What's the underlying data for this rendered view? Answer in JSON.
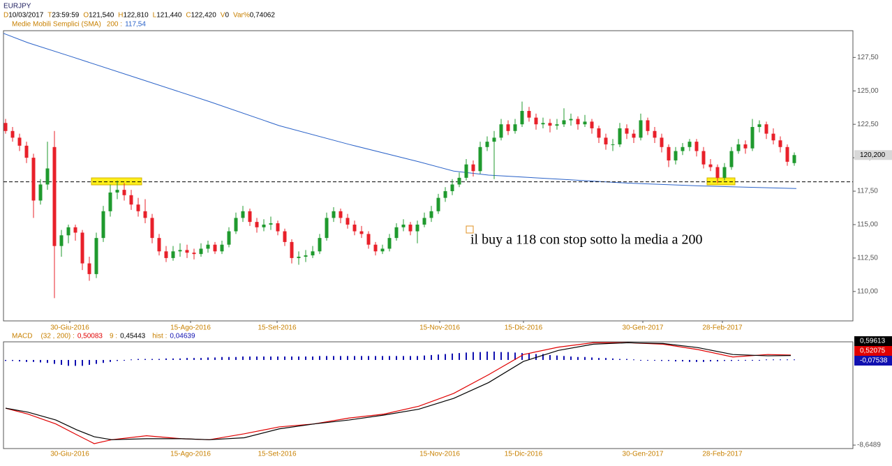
{
  "chart_data": [
    {
      "type": "candlestick",
      "title": "EURJPY",
      "header": [
        {
          "key": "D",
          "value": "10/03/2017"
        },
        {
          "key": "T",
          "value": "23:59:59"
        },
        {
          "key": "O",
          "value": "121,540"
        },
        {
          "key": "H",
          "value": "122,810"
        },
        {
          "key": "L",
          "value": "121,440"
        },
        {
          "key": "C",
          "value": "122,420"
        },
        {
          "key": "V",
          "value": "0"
        },
        {
          "key": "Var%",
          "value": "0,74062"
        }
      ],
      "indicator": {
        "name": "Medie Mobili Semplici (SMA)",
        "param": "200 :",
        "value": "117,54"
      },
      "xlim": [
        -0.3,
        121.4
      ],
      "ylim": [
        107.8,
        129.5
      ],
      "yticks": [
        {
          "value": 110,
          "label": "110,00"
        },
        {
          "value": 112.5,
          "label": "112,50"
        },
        {
          "value": 115,
          "label": "115,00"
        },
        {
          "value": 117.5,
          "label": "117,50"
        },
        {
          "value": 120,
          "label": "120,00"
        },
        {
          "value": 122.5,
          "label": "122,50"
        },
        {
          "value": 125,
          "label": "125,00"
        },
        {
          "value": 127.5,
          "label": "127,50"
        }
      ],
      "xticks": [
        {
          "value": 9.2,
          "label": "30-Giu-2016"
        },
        {
          "value": 26.5,
          "label": "15-Ago-2016"
        },
        {
          "value": 38.9,
          "label": "15-Set-2016"
        },
        {
          "value": 62.2,
          "label": "15-Nov-2016"
        },
        {
          "value": 74.2,
          "label": "15-Dic-2016"
        },
        {
          "value": 91.3,
          "label": "30-Gen-2017"
        },
        {
          "value": 102.7,
          "label": "28-Feb-2017"
        }
      ],
      "up_color": "#1f9a2e",
      "down_color": "#e8202a",
      "ohlc": [
        [
          122.6,
          122.9,
          121.8,
          122.0
        ],
        [
          122.0,
          122.3,
          121.2,
          121.5
        ],
        [
          121.5,
          121.8,
          120.5,
          120.9
        ],
        [
          120.9,
          121.2,
          119.6,
          120.0
        ],
        [
          120.0,
          120.3,
          115.5,
          116.8
        ],
        [
          116.8,
          118.4,
          116.5,
          118.0
        ],
        [
          118.0,
          121.2,
          117.6,
          119.2
        ],
        [
          120.8,
          122.0,
          109.5,
          113.4
        ],
        [
          113.4,
          114.6,
          112.6,
          114.2
        ],
        [
          114.2,
          115.0,
          113.6,
          114.8
        ],
        [
          114.8,
          115.0,
          113.8,
          114.4
        ],
        [
          114.4,
          114.6,
          111.6,
          112.1
        ],
        [
          112.1,
          112.6,
          110.8,
          111.3
        ],
        [
          111.3,
          114.4,
          111.0,
          114.0
        ],
        [
          114.0,
          116.4,
          113.7,
          116.0
        ],
        [
          116.0,
          118.0,
          115.6,
          117.4
        ],
        [
          117.4,
          118.3,
          116.9,
          117.6
        ],
        [
          117.6,
          118.1,
          116.8,
          117.2
        ],
        [
          117.2,
          117.6,
          116.1,
          116.5
        ],
        [
          116.5,
          117.0,
          115.6,
          116.0
        ],
        [
          116.0,
          116.9,
          115.1,
          115.5
        ],
        [
          115.5,
          115.8,
          113.6,
          114.0
        ],
        [
          114.0,
          114.3,
          112.7,
          113.0
        ],
        [
          113.0,
          113.4,
          112.2,
          112.5
        ],
        [
          112.5,
          113.4,
          112.3,
          113.0
        ],
        [
          113.0,
          113.6,
          112.6,
          113.1
        ],
        [
          113.1,
          113.5,
          112.5,
          112.9
        ],
        [
          112.9,
          113.2,
          112.4,
          112.8
        ],
        [
          112.8,
          113.6,
          112.6,
          113.2
        ],
        [
          113.2,
          113.8,
          112.9,
          113.5
        ],
        [
          113.5,
          113.7,
          112.8,
          113.0
        ],
        [
          113.0,
          113.8,
          112.8,
          113.5
        ],
        [
          113.5,
          114.8,
          113.3,
          114.5
        ],
        [
          114.5,
          115.9,
          114.3,
          115.5
        ],
        [
          115.5,
          116.4,
          115.2,
          116.0
        ],
        [
          116.0,
          116.2,
          114.9,
          115.2
        ],
        [
          115.2,
          115.5,
          114.4,
          114.8
        ],
        [
          114.8,
          115.4,
          114.5,
          115.0
        ],
        [
          115.0,
          115.6,
          114.6,
          115.1
        ],
        [
          115.1,
          115.3,
          114.2,
          114.5
        ],
        [
          114.5,
          114.7,
          113.4,
          113.7
        ],
        [
          113.7,
          113.9,
          112.1,
          112.5
        ],
        [
          112.5,
          113.0,
          112.0,
          112.6
        ],
        [
          112.6,
          113.1,
          112.2,
          112.7
        ],
        [
          112.7,
          113.4,
          112.5,
          113.0
        ],
        [
          113.0,
          114.3,
          112.8,
          114.0
        ],
        [
          114.0,
          115.9,
          113.8,
          115.5
        ],
        [
          115.5,
          116.3,
          115.2,
          116.0
        ],
        [
          116.0,
          116.2,
          115.1,
          115.5
        ],
        [
          115.5,
          115.8,
          114.7,
          115.0
        ],
        [
          115.0,
          115.3,
          114.2,
          114.5
        ],
        [
          114.5,
          114.9,
          114.0,
          114.3
        ],
        [
          114.3,
          114.5,
          113.2,
          113.5
        ],
        [
          113.5,
          113.7,
          112.7,
          113.0
        ],
        [
          113.0,
          113.5,
          112.8,
          113.2
        ],
        [
          113.2,
          114.3,
          113.0,
          114.0
        ],
        [
          114.0,
          115.1,
          113.8,
          114.8
        ],
        [
          114.8,
          115.4,
          114.5,
          115.0
        ],
        [
          115.0,
          115.2,
          114.2,
          114.5
        ],
        [
          114.5,
          115.3,
          113.6,
          115.0
        ],
        [
          115.0,
          115.9,
          114.8,
          115.5
        ],
        [
          115.5,
          116.4,
          115.2,
          116.0
        ],
        [
          116.0,
          117.3,
          115.8,
          117.0
        ],
        [
          117.0,
          117.8,
          116.7,
          117.5
        ],
        [
          117.5,
          118.4,
          117.2,
          118.0
        ],
        [
          118.0,
          118.9,
          117.8,
          118.5
        ],
        [
          118.5,
          119.9,
          118.3,
          119.5
        ],
        [
          119.5,
          119.8,
          118.6,
          119.0
        ],
        [
          119.0,
          121.2,
          118.8,
          120.8
        ],
        [
          120.8,
          121.6,
          120.5,
          121.2
        ],
        [
          121.2,
          122.0,
          118.4,
          121.5
        ],
        [
          121.5,
          122.9,
          121.3,
          122.5
        ],
        [
          122.5,
          122.8,
          121.7,
          122.0
        ],
        [
          122.0,
          122.9,
          121.8,
          122.5
        ],
        [
          122.5,
          124.2,
          122.3,
          123.5
        ],
        [
          123.5,
          123.8,
          122.7,
          123.0
        ],
        [
          123.0,
          123.3,
          122.1,
          122.5
        ],
        [
          122.5,
          123.0,
          122.2,
          122.6
        ],
        [
          122.6,
          122.9,
          121.9,
          122.4
        ],
        [
          122.4,
          122.9,
          122.1,
          122.5
        ],
        [
          122.5,
          123.7,
          122.3,
          122.8
        ],
        [
          122.8,
          123.3,
          122.4,
          122.9
        ],
        [
          122.9,
          123.1,
          122.1,
          122.5
        ],
        [
          122.5,
          123.2,
          122.3,
          122.7
        ],
        [
          122.7,
          122.9,
          121.8,
          122.2
        ],
        [
          122.2,
          122.4,
          121.1,
          121.5
        ],
        [
          121.5,
          121.8,
          120.6,
          121.0
        ],
        [
          121.0,
          121.4,
          120.5,
          121.0
        ],
        [
          121.0,
          122.6,
          120.8,
          122.2
        ],
        [
          122.2,
          122.5,
          121.4,
          121.8
        ],
        [
          121.8,
          122.1,
          121.1,
          121.5
        ],
        [
          121.5,
          123.3,
          121.3,
          122.8
        ],
        [
          122.8,
          123.0,
          121.7,
          122.0
        ],
        [
          122.0,
          122.3,
          121.1,
          121.5
        ],
        [
          121.5,
          121.8,
          120.4,
          120.8
        ],
        [
          120.8,
          121.0,
          119.3,
          119.8
        ],
        [
          119.8,
          120.8,
          119.5,
          120.5
        ],
        [
          120.5,
          121.1,
          120.2,
          120.8
        ],
        [
          120.8,
          121.4,
          120.5,
          121.2
        ],
        [
          121.2,
          121.4,
          120.1,
          120.5
        ],
        [
          120.5,
          120.8,
          119.2,
          119.5
        ],
        [
          119.5,
          119.9,
          119.0,
          119.3
        ],
        [
          119.3,
          119.5,
          118.1,
          118.5
        ],
        [
          118.5,
          119.6,
          118.3,
          119.3
        ],
        [
          119.3,
          120.8,
          119.1,
          120.5
        ],
        [
          120.5,
          121.4,
          120.3,
          121.0
        ],
        [
          121.0,
          121.3,
          120.3,
          120.7
        ],
        [
          120.7,
          122.9,
          120.5,
          122.3
        ],
        [
          122.3,
          122.8,
          121.9,
          122.5
        ],
        [
          122.5,
          122.7,
          121.4,
          121.8
        ],
        [
          121.8,
          122.2,
          121.0,
          121.3
        ],
        [
          121.3,
          121.6,
          120.4,
          120.8
        ],
        [
          120.8,
          121.0,
          119.4,
          119.7
        ],
        [
          119.6,
          120.4,
          119.4,
          120.2
        ]
      ],
      "sma": {
        "color": "#2a62c8",
        "x": [
          -0.3,
          3.2,
          9.2,
          19.2,
          29.2,
          39.2,
          49.2,
          59.2,
          64.2,
          69.2,
          79.2,
          89.2,
          99.2,
          113.3
        ],
        "values": [
          129.3,
          128.6,
          127.6,
          125.9,
          124.2,
          122.4,
          121.0,
          119.7,
          119.0,
          118.7,
          118.4,
          118.1,
          117.9,
          117.7
        ]
      },
      "hline": 118.2,
      "last_price": {
        "value": 120.2,
        "label": "120,200"
      },
      "annotation": "il buy a 118 con stop sotto la media a 200"
    },
    {
      "type": "macd",
      "title": "MACD",
      "legend": [
        {
          "label": "(32 , 200) :",
          "value": "0,50083",
          "color": "#e00000"
        },
        {
          "label": "9 :",
          "value": "0,45443",
          "color": "#000000"
        },
        {
          "label": "hist :",
          "value": "0,04639",
          "color": "#1010b0"
        }
      ],
      "xlim": [
        -0.3,
        121.4
      ],
      "ylim": [
        -9.0,
        1.84
      ],
      "x": [
        0,
        3.2,
        7.2,
        10.2,
        12.7,
        15.2,
        20.2,
        25.2,
        29.2,
        34.2,
        39.2,
        44.2,
        49.2,
        54.2,
        59.2,
        64.2,
        69.2,
        74.2,
        79.2,
        84.2,
        89.2,
        94.2,
        99.2,
        104.2,
        109.2,
        112.5
      ],
      "series": [
        {
          "color": "#e00000",
          "values": [
            -4.9,
            -5.5,
            -6.5,
            -7.6,
            -8.5,
            -8.1,
            -7.7,
            -8.0,
            -8.1,
            -7.5,
            -6.8,
            -6.5,
            -5.9,
            -5.5,
            -4.7,
            -3.4,
            -1.5,
            0.55,
            1.3,
            1.75,
            1.75,
            1.6,
            1.05,
            0.3,
            0.55,
            0.5
          ]
        },
        {
          "color": "#000000",
          "values": [
            -4.9,
            -5.3,
            -6.1,
            -7.1,
            -7.8,
            -8.1,
            -8.0,
            -8.0,
            -8.1,
            -7.9,
            -7.0,
            -6.5,
            -6.1,
            -5.6,
            -5.0,
            -3.9,
            -2.3,
            -0.15,
            0.97,
            1.6,
            1.75,
            1.67,
            1.25,
            0.55,
            0.42,
            0.45
          ]
        }
      ],
      "hist": {
        "color": "#1010b0",
        "values": [
          -0.1,
          -0.1,
          -0.15,
          -0.2,
          -0.2,
          -0.25,
          -0.3,
          -0.4,
          -0.5,
          -0.6,
          -0.6,
          -0.6,
          -0.5,
          -0.4,
          -0.3,
          -0.2,
          -0.1,
          0,
          0.05,
          0.1,
          0.1,
          0.1,
          0.1,
          0.15,
          0.15,
          0.15,
          0.2,
          0.2,
          0.2,
          0.25,
          0.25,
          0.3,
          0.3,
          0.3,
          0.35,
          0.35,
          0.35,
          0.35,
          0.35,
          0.35,
          0.35,
          0.35,
          0.35,
          0.35,
          0.35,
          0.4,
          0.4,
          0.4,
          0.4,
          0.4,
          0.4,
          0.4,
          0.4,
          0.4,
          0.4,
          0.4,
          0.4,
          0.4,
          0.4,
          0.4,
          0.45,
          0.5,
          0.55,
          0.6,
          0.65,
          0.7,
          0.75,
          0.8,
          0.8,
          0.85,
          0.85,
          0.8,
          0.8,
          0.75,
          0.7,
          0.65,
          0.6,
          0.6,
          0.5,
          0.45,
          0.4,
          0.35,
          0.3,
          0.3,
          0.25,
          0.2,
          0.2,
          0.15,
          0.1,
          0.1,
          0.05,
          0,
          0,
          -0.05,
          -0.1,
          -0.1,
          -0.15,
          -0.15,
          -0.2,
          -0.2,
          -0.2,
          -0.15,
          -0.15,
          -0.1,
          -0.1,
          -0.05,
          -0.05,
          0,
          0,
          0.05,
          0.05,
          0.05,
          0.05,
          0.05
        ]
      },
      "right_labels": [
        {
          "label": "0,59613",
          "color": "#000000"
        },
        {
          "label": "0,52075",
          "color": "#e00000"
        },
        {
          "label": "-0,07538",
          "color": "#1010b0"
        }
      ],
      "min_label": {
        "value": -8.6489,
        "label": "-8,6489"
      }
    }
  ]
}
